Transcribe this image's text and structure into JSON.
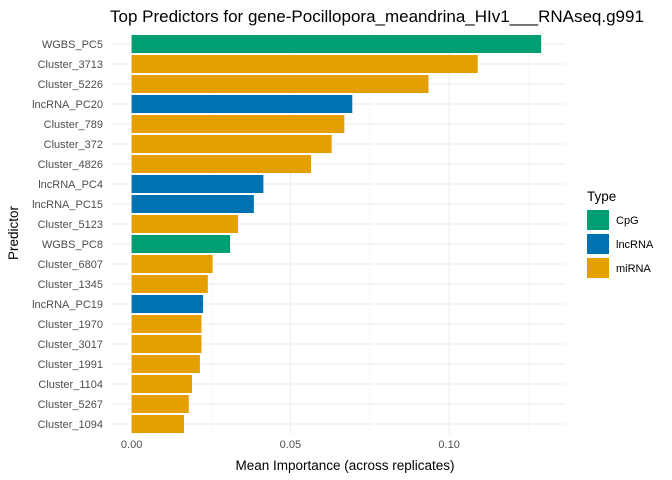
{
  "chart_data": {
    "type": "bar",
    "orientation": "horizontal",
    "title": "Top Predictors for gene-Pocillopora_meandrina_HIv1___RNAseq.g991",
    "xlabel": "Mean Importance (across replicates)",
    "ylabel": "Predictor",
    "xlim": [
      -0.0065,
      0.1365
    ],
    "xticks": [
      0.0,
      0.05,
      0.1
    ],
    "xtick_labels": [
      "0.00",
      "0.05",
      "0.10"
    ],
    "grid": true,
    "legend": {
      "title": "Type",
      "position": "right",
      "entries": [
        {
          "label": "CpG",
          "color": "#009E73"
        },
        {
          "label": "lncRNA",
          "color": "#0072B2"
        },
        {
          "label": "miRNA",
          "color": "#E69F00"
        }
      ]
    },
    "bars": [
      {
        "label": "WGBS_PC5",
        "value": 0.129,
        "type": "CpG"
      },
      {
        "label": "Cluster_3713",
        "value": 0.109,
        "type": "miRNA"
      },
      {
        "label": "Cluster_5226",
        "value": 0.0935,
        "type": "miRNA"
      },
      {
        "label": "lncRNA_PC20",
        "value": 0.0695,
        "type": "lncRNA"
      },
      {
        "label": "Cluster_789",
        "value": 0.067,
        "type": "miRNA"
      },
      {
        "label": "Cluster_372",
        "value": 0.063,
        "type": "miRNA"
      },
      {
        "label": "Cluster_4826",
        "value": 0.0565,
        "type": "miRNA"
      },
      {
        "label": "lncRNA_PC4",
        "value": 0.0415,
        "type": "lncRNA"
      },
      {
        "label": "lncRNA_PC15",
        "value": 0.0385,
        "type": "lncRNA"
      },
      {
        "label": "Cluster_5123",
        "value": 0.0335,
        "type": "miRNA"
      },
      {
        "label": "WGBS_PC8",
        "value": 0.031,
        "type": "CpG"
      },
      {
        "label": "Cluster_6807",
        "value": 0.0255,
        "type": "miRNA"
      },
      {
        "label": "Cluster_1345",
        "value": 0.024,
        "type": "miRNA"
      },
      {
        "label": "lncRNA_PC19",
        "value": 0.0225,
        "type": "lncRNA"
      },
      {
        "label": "Cluster_1970",
        "value": 0.022,
        "type": "miRNA"
      },
      {
        "label": "Cluster_3017",
        "value": 0.022,
        "type": "miRNA"
      },
      {
        "label": "Cluster_1991",
        "value": 0.0215,
        "type": "miRNA"
      },
      {
        "label": "Cluster_1104",
        "value": 0.019,
        "type": "miRNA"
      },
      {
        "label": "Cluster_5267",
        "value": 0.018,
        "type": "miRNA"
      },
      {
        "label": "Cluster_1094",
        "value": 0.0165,
        "type": "miRNA"
      }
    ]
  }
}
